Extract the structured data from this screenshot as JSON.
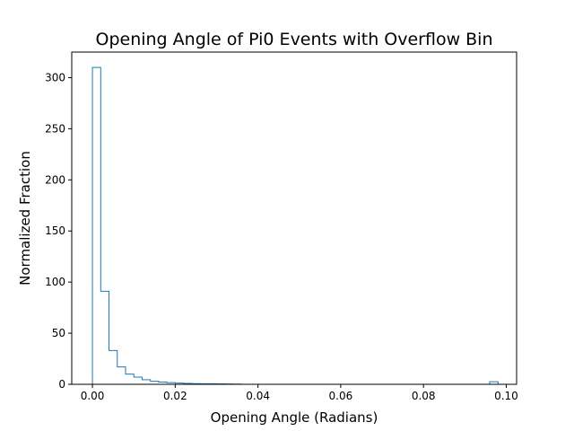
{
  "chart_data": {
    "type": "histogram",
    "title": "Opening Angle of Pi0 Events with Overflow Bin",
    "xlabel": "Opening Angle (Radians)",
    "ylabel": "Normalized Fraction",
    "xlim": [
      -0.005,
      0.1025
    ],
    "ylim": [
      0,
      325
    ],
    "xticks": [
      0.0,
      0.02,
      0.04,
      0.06,
      0.08,
      0.1
    ],
    "xtick_labels": [
      "0.00",
      "0.02",
      "0.04",
      "0.06",
      "0.08",
      "0.10"
    ],
    "yticks": [
      0,
      50,
      100,
      150,
      200,
      250,
      300
    ],
    "ytick_labels": [
      "0",
      "50",
      "100",
      "150",
      "200",
      "250",
      "300"
    ],
    "bin_edges": [
      0.0,
      0.002,
      0.004,
      0.006,
      0.008,
      0.01,
      0.012,
      0.014,
      0.016,
      0.018,
      0.02,
      0.022,
      0.024,
      0.026,
      0.028,
      0.03,
      0.032,
      0.034,
      0.036,
      0.038,
      0.04,
      0.042,
      0.044,
      0.046,
      0.048,
      0.05,
      0.052,
      0.054,
      0.056,
      0.058,
      0.06,
      0.062,
      0.064,
      0.066,
      0.068,
      0.07,
      0.072,
      0.074,
      0.076,
      0.078,
      0.08,
      0.082,
      0.084,
      0.086,
      0.088,
      0.09,
      0.092,
      0.094,
      0.096,
      0.098
    ],
    "values": [
      310,
      91,
      33,
      17,
      10,
      7,
      4.5,
      3,
      2.2,
      1.6,
      1.2,
      0.9,
      0.7,
      0.6,
      0.5,
      0.4,
      0.3,
      0.2,
      0,
      0,
      0,
      0,
      0,
      0,
      0,
      0,
      0,
      0,
      0,
      0,
      0,
      0,
      0,
      0,
      0,
      0,
      0,
      0,
      0,
      0,
      0,
      0,
      0,
      0,
      0,
      0,
      0,
      0,
      2.5
    ],
    "color": "#1f77b4",
    "grid": false,
    "histtype": "step"
  }
}
